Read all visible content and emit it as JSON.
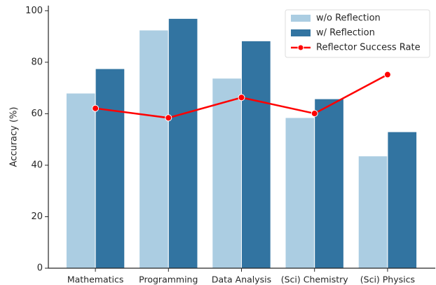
{
  "chart_data": {
    "type": "bar",
    "ylabel": "Accuracy (%)",
    "categories": [
      "Mathematics",
      "Programming",
      "Data Analysis",
      "(Sci) Chemistry",
      "(Sci) Physics"
    ],
    "series": [
      {
        "name": "w/o Reflection",
        "color": "#abcde2",
        "values": [
          68,
          92.5,
          73.8,
          58.5,
          43.6
        ]
      },
      {
        "name": "w/ Reflection",
        "color": "#3274a1",
        "values": [
          77.5,
          97,
          88.3,
          65.8,
          53
        ]
      },
      {
        "name": "Reflector Success Rate",
        "color": "#ff0000",
        "type": "line",
        "values": [
          62.1,
          58.4,
          66.3,
          60.1,
          75.2
        ]
      }
    ],
    "ylim": [
      0,
      102
    ],
    "yticks": [
      0,
      20,
      40,
      60,
      80,
      100
    ],
    "legend": "upper right"
  }
}
